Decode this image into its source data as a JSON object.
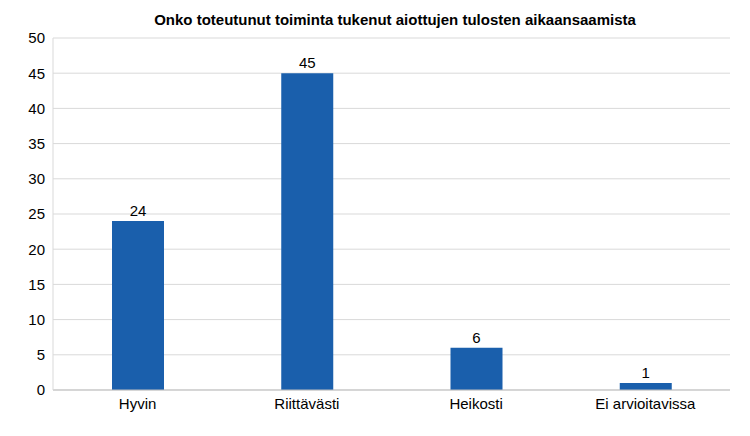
{
  "chart_data": {
    "type": "bar",
    "title": "Onko toteutunut toiminta tukenut aiottujen tulosten aikaansaamista",
    "categories": [
      "Hyvin",
      "Riittävästi",
      "Heikosti",
      "Ei arvioitavissa"
    ],
    "values": [
      24,
      45,
      6,
      1
    ],
    "color": "#1a5fac",
    "ylim": [
      0,
      50
    ],
    "yticks": [
      0,
      5,
      10,
      15,
      20,
      25,
      30,
      35,
      40,
      45,
      50
    ],
    "grid": true,
    "data_labels": true
  }
}
